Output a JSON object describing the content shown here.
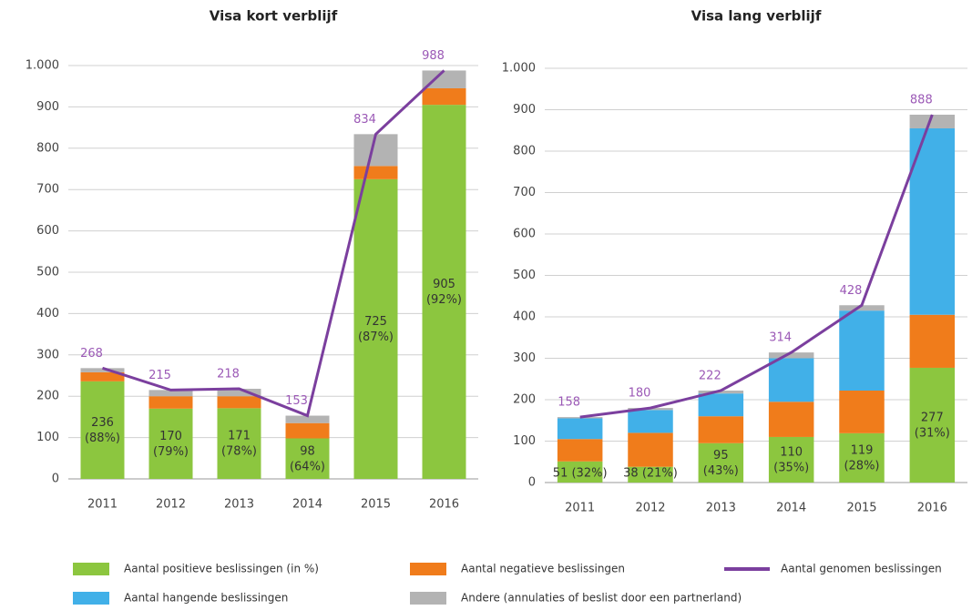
{
  "chart_data": [
    {
      "type": "bar",
      "stacked": true,
      "title": "Visa kort verblijf",
      "categories": [
        "2011",
        "2012",
        "2013",
        "2014",
        "2015",
        "2016"
      ],
      "series": [
        {
          "color": "#8cc63f",
          "values": [
            236,
            170,
            171,
            98,
            725,
            905
          ],
          "value_labels": [
            "236 (88%)",
            "170 (79%)",
            "171 (78%)",
            "98 (64%)",
            "725 (87%)",
            "905 (92%)"
          ]
        },
        {
          "color": "#f07c1b",
          "values": [
            22,
            30,
            29,
            37,
            32,
            40
          ]
        },
        {
          "color": "#b3b3b3",
          "values": [
            10,
            15,
            18,
            18,
            77,
            43
          ]
        }
      ],
      "line": {
        "color": "#7b3f9e",
        "values": [
          268,
          215,
          218,
          153,
          834,
          988
        ]
      },
      "ylim": [
        0,
        1000
      ],
      "yticks": [
        0,
        100,
        200,
        300,
        400,
        500,
        600,
        700,
        800,
        900,
        {
          "value": 1000,
          "label": "1.000"
        }
      ]
    },
    {
      "type": "bar",
      "stacked": true,
      "title": "Visa lang verblijf",
      "categories": [
        "2011",
        "2012",
        "2013",
        "2014",
        "2015",
        "2016"
      ],
      "series": [
        {
          "color": "#8cc63f",
          "values": [
            51,
            38,
            95,
            110,
            119,
            277
          ],
          "value_labels": [
            "51 (32%)",
            "38 (21%)",
            "95 (43%)",
            "110 (35%)",
            "119 (28%)",
            "277 (31%)"
          ]
        },
        {
          "color": "#f07c1b",
          "values": [
            54,
            82,
            65,
            85,
            103,
            128
          ]
        },
        {
          "color": "#41b0e8",
          "values": [
            50,
            55,
            55,
            105,
            193,
            450
          ]
        },
        {
          "color": "#b3b3b3",
          "values": [
            3,
            5,
            7,
            14,
            13,
            33
          ]
        }
      ],
      "line": {
        "color": "#7b3f9e",
        "values": [
          158,
          180,
          222,
          314,
          428,
          888
        ]
      },
      "ylim": [
        0,
        1000
      ],
      "yticks": [
        0,
        100,
        200,
        300,
        400,
        500,
        600,
        700,
        800,
        900,
        {
          "value": 1000,
          "label": "1.000"
        }
      ]
    }
  ],
  "legend": [
    {
      "name": "Aantal positieve beslissingen (in %)",
      "color": "#8cc63f",
      "marker": "box"
    },
    {
      "name": "Aantal negatieve beslissingen",
      "color": "#f07c1b",
      "marker": "box"
    },
    {
      "name": "Aantal genomen beslissingen",
      "color": "#7b3f9e",
      "marker": "line"
    },
    {
      "name": "Aantal hangende beslissingen",
      "color": "#41b0e8",
      "marker": "box"
    },
    {
      "name": "Andere (annulaties of beslist door een partnerland)",
      "color": "#b3b3b3",
      "marker": "box"
    }
  ]
}
